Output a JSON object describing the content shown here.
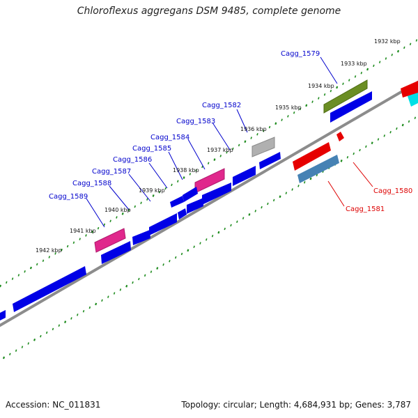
{
  "title": "Chloroflexus aggregans DSM 9485, complete genome",
  "accession_label": "Accession: NC_011831",
  "topology_label": "Topology: circular; Length: 4,684,931 bp; Genes: 3,787",
  "colors": {
    "backbone": "#8c8c8c",
    "tick_dots": "#1e8c1e",
    "cds_forward": "#0000e6",
    "cds_reverse": "#e60000",
    "label_forward": "#0000cc",
    "label_reverse": "#dd0000"
  },
  "ticks": [
    "1932 kbp",
    "1933 kbp",
    "1934 kbp",
    "1935 kbp",
    "1936 kbp",
    "1937 kbp",
    "1938 kbp",
    "1939 kbp",
    "1940 kbp",
    "1941 kbp",
    "1942 kbp"
  ],
  "forward_labels": [
    "Cagg_1579",
    "Cagg_1582",
    "Cagg_1583",
    "Cagg_1584",
    "Cagg_1585",
    "Cagg_1586",
    "Cagg_1587",
    "Cagg_1588",
    "Cagg_1589"
  ],
  "reverse_labels": [
    "Cagg_1580",
    "Cagg_1581"
  ]
}
